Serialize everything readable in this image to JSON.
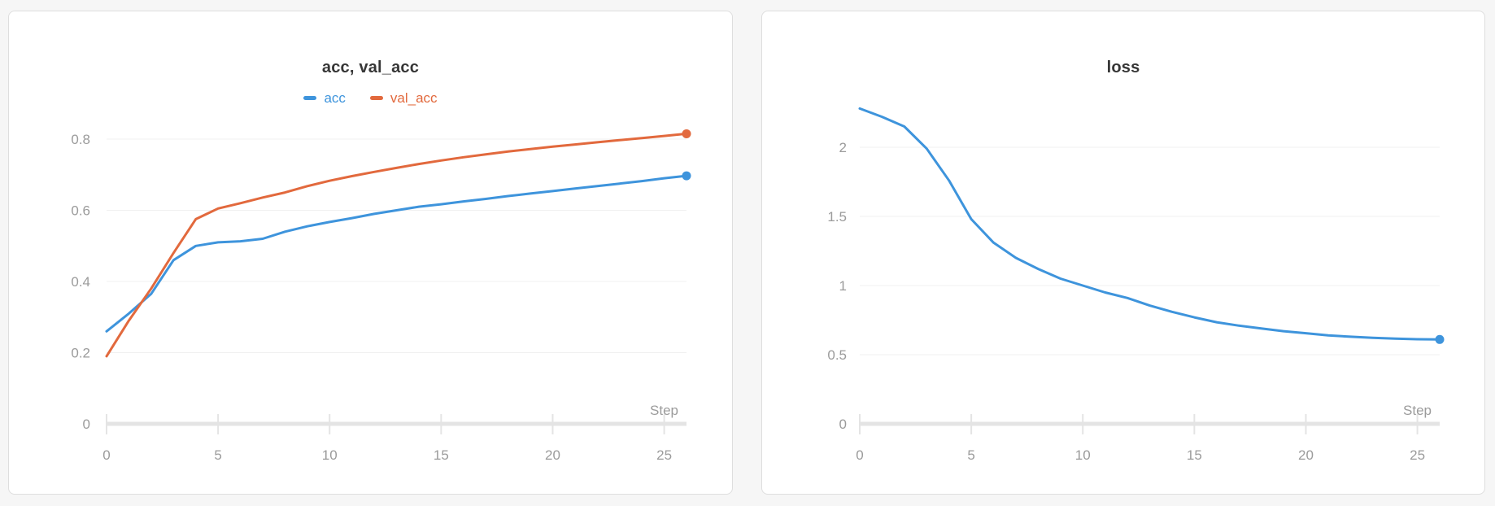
{
  "page": {
    "background_color": "#f6f6f6",
    "card_background": "#ffffff",
    "card_border_color": "#dedede",
    "gridline_color": "#f0f0f0",
    "axis_color": "#e4e4e4",
    "tick_label_color": "#9b9b9b",
    "title_color": "#363636"
  },
  "chart_data": [
    {
      "type": "line",
      "title": "acc, val_acc",
      "x_label": "Step",
      "grid": true,
      "legend_position": "top-center",
      "xlim": [
        0,
        26
      ],
      "ylim": [
        0,
        0.88
      ],
      "x_ticks": [
        0,
        5,
        10,
        15,
        20,
        25
      ],
      "x_tick_labels": [
        "0",
        "5",
        "10",
        "15",
        "20",
        "25"
      ],
      "y_tick_values": [
        0,
        0.2,
        0.4,
        0.6,
        0.8
      ],
      "y_tick_labels": [
        "0",
        "0.2",
        "0.4",
        "0.6",
        "0.8"
      ],
      "x": [
        0,
        1,
        2,
        3,
        4,
        5,
        6,
        7,
        8,
        9,
        10,
        11,
        12,
        13,
        14,
        15,
        16,
        17,
        18,
        19,
        20,
        21,
        22,
        23,
        24,
        25,
        26
      ],
      "series": [
        {
          "name": "acc",
          "color": "#3e94dc",
          "values": [
            0.26,
            0.31,
            0.365,
            0.46,
            0.5,
            0.51,
            0.513,
            0.52,
            0.54,
            0.555,
            0.567,
            0.578,
            0.59,
            0.6,
            0.61,
            0.617,
            0.625,
            0.632,
            0.64,
            0.647,
            0.654,
            0.661,
            0.668,
            0.675,
            0.682,
            0.69,
            0.697
          ]
        },
        {
          "name": "val_acc",
          "color": "#e2693d",
          "values": [
            0.19,
            0.29,
            0.38,
            0.48,
            0.575,
            0.605,
            0.62,
            0.636,
            0.65,
            0.668,
            0.683,
            0.696,
            0.708,
            0.719,
            0.73,
            0.74,
            0.749,
            0.757,
            0.765,
            0.772,
            0.779,
            0.785,
            0.791,
            0.797,
            0.803,
            0.809,
            0.815
          ]
        }
      ]
    },
    {
      "type": "line",
      "title": "loss",
      "x_label": "Step",
      "grid": true,
      "legend_position": "none",
      "xlim": [
        0,
        26
      ],
      "ylim": [
        0,
        2.4
      ],
      "x_ticks": [
        0,
        5,
        10,
        15,
        20,
        25
      ],
      "x_tick_labels": [
        "0",
        "5",
        "10",
        "15",
        "20",
        "25"
      ],
      "y_tick_values": [
        0,
        0.5,
        1,
        1.5,
        2
      ],
      "y_tick_labels": [
        "0",
        "0.5",
        "1",
        "1.5",
        "2"
      ],
      "x": [
        0,
        1,
        2,
        3,
        4,
        5,
        6,
        7,
        8,
        9,
        10,
        11,
        12,
        13,
        14,
        15,
        16,
        17,
        18,
        19,
        20,
        21,
        22,
        23,
        24,
        25,
        26
      ],
      "series": [
        {
          "name": "loss",
          "color": "#3e94dc",
          "values": [
            2.28,
            2.22,
            2.15,
            1.99,
            1.76,
            1.48,
            1.31,
            1.2,
            1.12,
            1.05,
            1.0,
            0.95,
            0.91,
            0.855,
            0.81,
            0.77,
            0.735,
            0.71,
            0.69,
            0.67,
            0.655,
            0.64,
            0.63,
            0.622,
            0.616,
            0.612,
            0.61
          ]
        }
      ]
    }
  ]
}
